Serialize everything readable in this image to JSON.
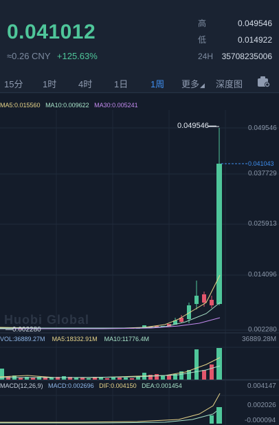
{
  "header": {
    "last_price": "0.041012",
    "cny_value": "≈0.26 CNY",
    "change_pct": "+125.63%",
    "high_label": "高",
    "high_value": "0.049546",
    "low_label": "低",
    "low_value": "0.014922",
    "vol24_label": "24H",
    "vol24_value": "35708235006"
  },
  "tabs": [
    {
      "label": "15分"
    },
    {
      "label": "1时"
    },
    {
      "label": "4时"
    },
    {
      "label": "1日"
    },
    {
      "label": "1周",
      "active": true
    },
    {
      "label": "更多"
    },
    {
      "label": "深度图"
    }
  ],
  "indicators": {
    "ma5": "MA5:0.015560",
    "ma10": "MA10:0.009622",
    "ma30": "MA30:0.005241",
    "vol": "VOL:36889.27M",
    "vol_ma5": "MA5:18332.91M",
    "vol_ma10": "MA10:11776.4M",
    "macd_params": "MACD(12,26,9)",
    "macd": "MACD:0.002696",
    "dif": "DIF:0.004150",
    "dea": "DEA:0.001454"
  },
  "price_axis": [
    "0.049546",
    "0.037729",
    "0.025913",
    "0.014096",
    "0.002280"
  ],
  "current_price_tag": "0.041043",
  "high_marker": "0.049546",
  "low_marker": "0.002280",
  "vol_axis": "36889.28M",
  "macd_axis": [
    "0.004147",
    "0.002026",
    "-0.000094"
  ],
  "watermark": "Huobi Global",
  "colors": {
    "up": "#4fc69a",
    "down": "#e2566c",
    "accent": "#3f8ff0"
  }
}
